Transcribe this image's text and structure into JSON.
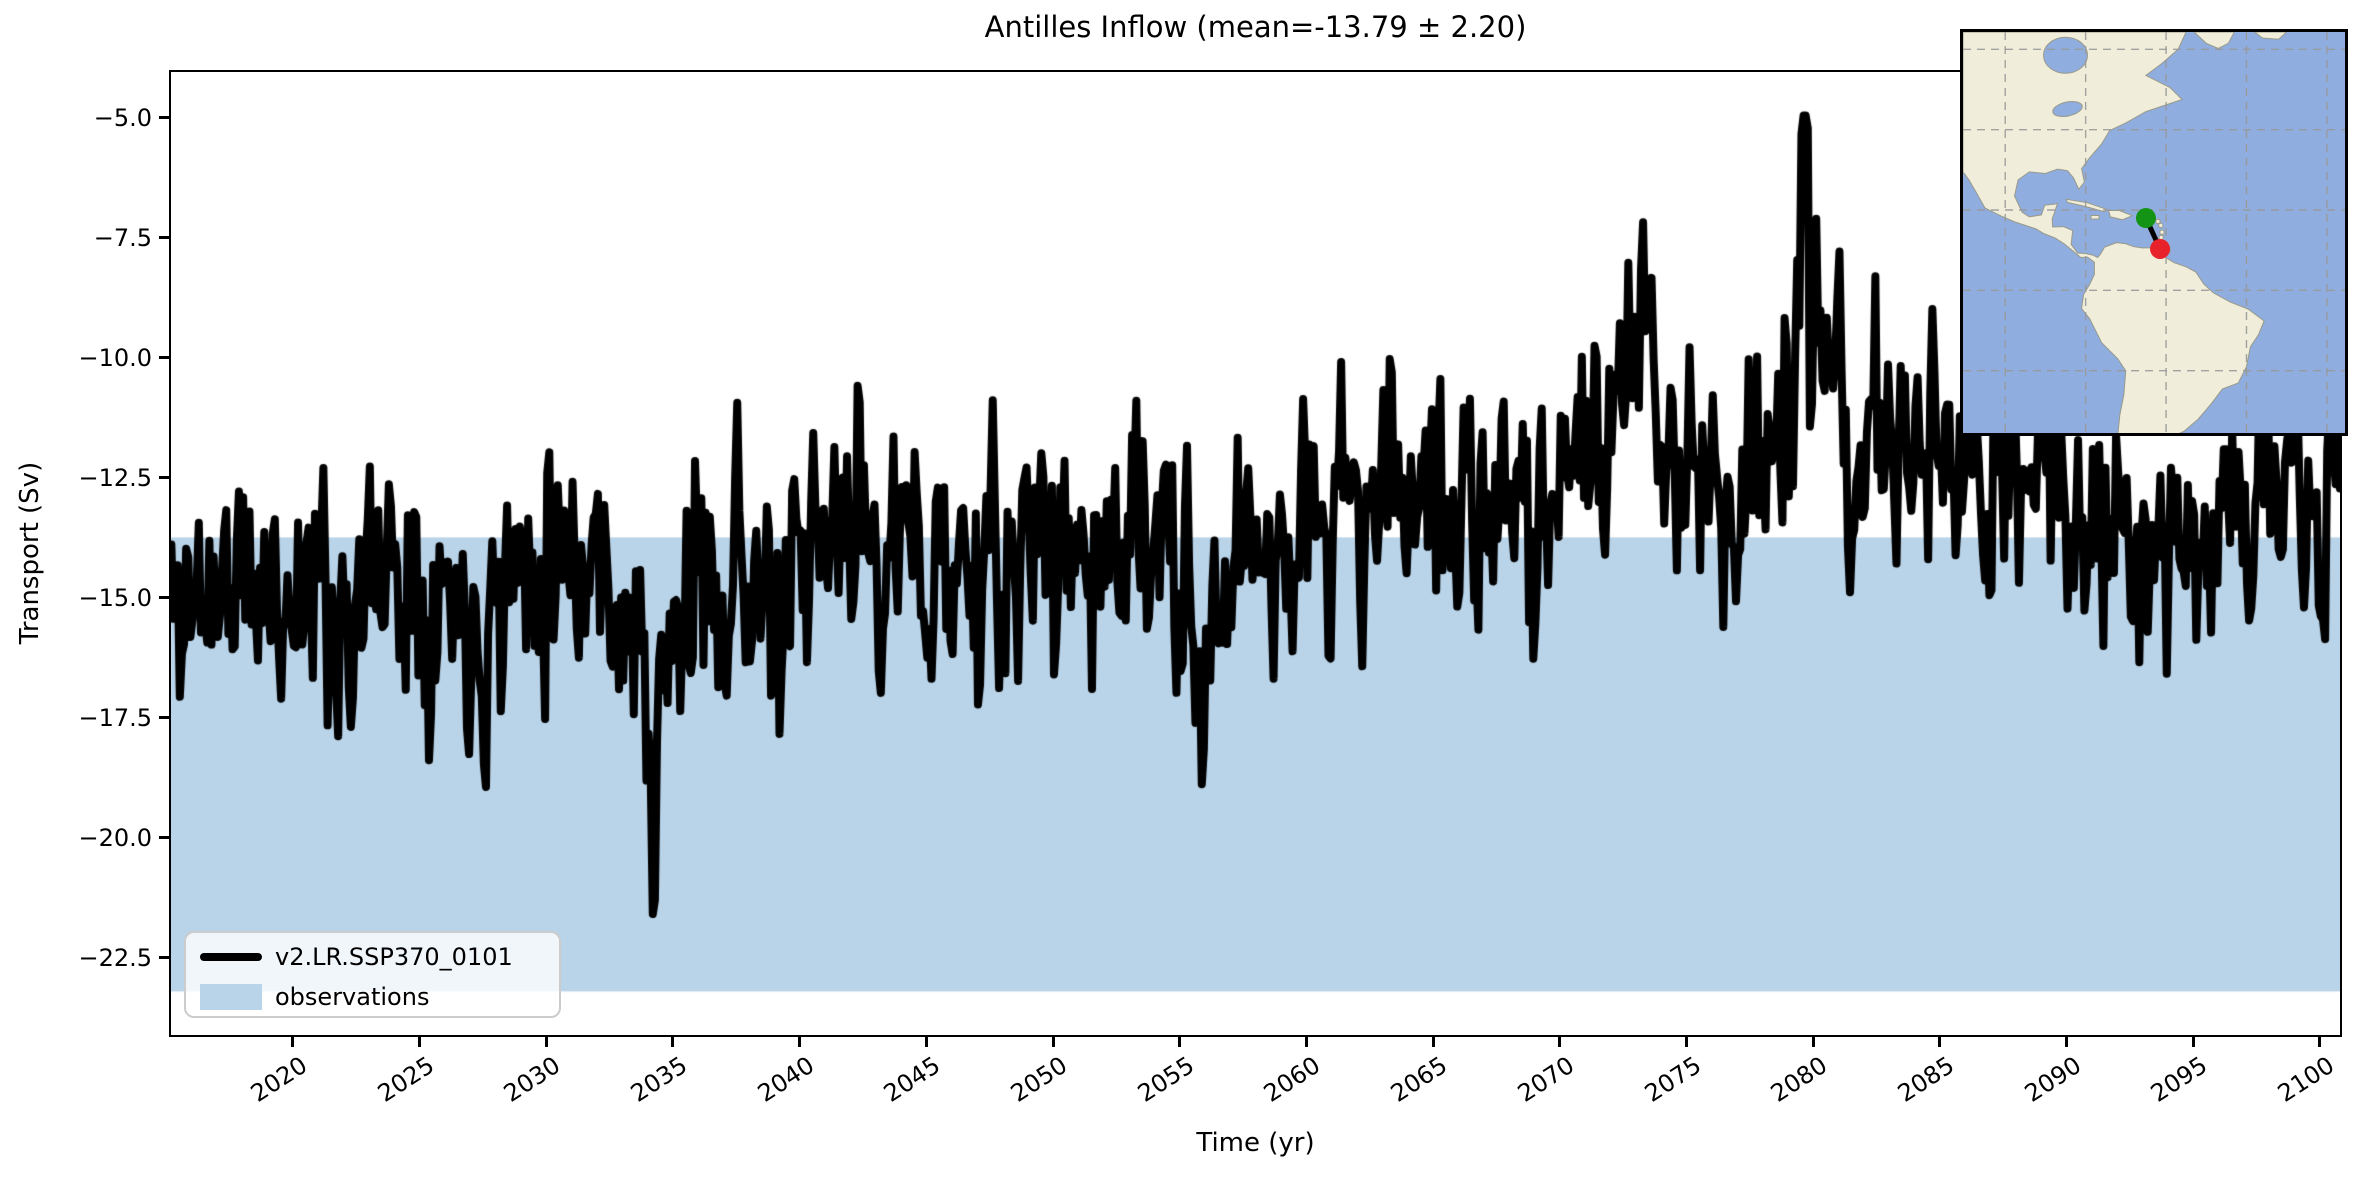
{
  "chart_data": {
    "type": "line",
    "title": "Antilles Inflow (mean=-13.79 ± 2.20)",
    "xlabel": "Time (yr)",
    "ylabel": "Transport (Sv)",
    "xlim": [
      2015.11,
      2100.87
    ],
    "ylim": [
      -24.15,
      -4.0
    ],
    "xticks": [
      2020,
      2025,
      2030,
      2035,
      2040,
      2045,
      2050,
      2055,
      2060,
      2065,
      2070,
      2075,
      2080,
      2085,
      2090,
      2095,
      2100
    ],
    "yticks": [
      -5.0,
      -7.5,
      -10.0,
      -12.5,
      -15.0,
      -17.5,
      -20.0,
      -22.5
    ],
    "ytick_labels": [
      "−5.0",
      "−7.5",
      "−10.0",
      "−12.5",
      "−15.0",
      "−17.5",
      "−20.0",
      "−22.5"
    ],
    "grid": false,
    "legend_position": "lower left",
    "stats": {
      "mean": -13.79,
      "std": 2.2
    },
    "series": [
      {
        "name": "v2.LR.SSP370_0101",
        "color": "#000000",
        "line_width": 8,
        "sampling": "monthly",
        "annual_means": {
          "start_year": 2015,
          "values": [
            -15.2,
            -14.8,
            -14.6,
            -15.0,
            -14.9,
            -14.6,
            -15.1,
            -15.3,
            -14.4,
            -14.1,
            -14.6,
            -15.0,
            -15.4,
            -14.7,
            -13.9,
            -13.6,
            -13.9,
            -14.6,
            -15.8,
            -16.8,
            -15.3,
            -14.4,
            -14.0,
            -14.9,
            -15.6,
            -14.6,
            -13.6,
            -13.2,
            -14.0,
            -14.5,
            -14.1,
            -14.4,
            -14.9,
            -14.4,
            -13.9,
            -13.8,
            -14.2,
            -13.9,
            -13.6,
            -14.4,
            -15.6,
            -15.2,
            -14.0,
            -13.6,
            -13.9,
            -13.4,
            -13.0,
            -13.4,
            -12.6,
            -12.1,
            -13.0,
            -13.5,
            -13.9,
            -13.0,
            -12.5,
            -12.1,
            -11.7,
            -11.2,
            -10.8,
            -11.6,
            -12.4,
            -12.9,
            -12.1,
            -11.3,
            -10.2,
            -11.2,
            -12.0,
            -11.6,
            -12.0,
            -11.7,
            -12.5,
            -13.0,
            -12.6,
            -12.2,
            -12.6,
            -13.1,
            -13.4,
            -13.1,
            -13.5,
            -13.9,
            -13.5,
            -13.1,
            -12.7,
            -13.0,
            -13.4,
            -13.8
          ]
        },
        "noise": {
          "seed": 11,
          "scale": 1.3,
          "persistence": 0.35
        },
        "anomalies": [
          {
            "t": 2034.25,
            "amp": -5.2,
            "sigma": 0.13
          },
          {
            "t": 2039.0,
            "amp": -3.2,
            "sigma": 0.09
          },
          {
            "t": 2055.9,
            "amp": -4.6,
            "sigma": 0.11
          },
          {
            "t": 2073.2,
            "amp": 2.0,
            "sigma": 0.15
          },
          {
            "t": 2079.63,
            "amp": 7.5,
            "sigma": 0.1
          },
          {
            "t": 2080.1,
            "amp": 3.2,
            "sigma": 0.07
          }
        ],
        "clip": [
          -21.65,
          -4.95
        ],
        "extremes": {
          "max": -5.0,
          "max_year": 2079.6,
          "min": -21.6,
          "min_year": 2034.2
        }
      }
    ],
    "observations_band": {
      "label": "observations",
      "color": "#b9d3e8",
      "range": [
        -23.2,
        -13.74
      ]
    }
  },
  "legend": {
    "entries": [
      {
        "label": "v2.LR.SSP370_0101",
        "swatch": "line",
        "color": "#000000"
      },
      {
        "label": "observations",
        "swatch": "patch",
        "color": "#b9d3e8"
      }
    ]
  },
  "inset_map": {
    "extent": {
      "lon": [
        -110.5,
        -15.5
      ],
      "lat": [
        -35.5,
        64.3
      ]
    },
    "grid_step_deg": 20,
    "grid_lons": [
      -100,
      -80,
      -60,
      -40,
      -20
    ],
    "grid_lats": [
      60,
      40,
      20,
      0,
      -20
    ],
    "ocean_color": "#8fadde",
    "land_color": "#f0eeda",
    "grid_color": "#999999",
    "section_line_color": "#000000",
    "markers": [
      {
        "name": "section-start",
        "color": "#149414",
        "lon": -65.0,
        "lat": 18.0
      },
      {
        "name": "section-end",
        "color": "#e8222a",
        "lon": -61.5,
        "lat": 10.3
      }
    ]
  }
}
